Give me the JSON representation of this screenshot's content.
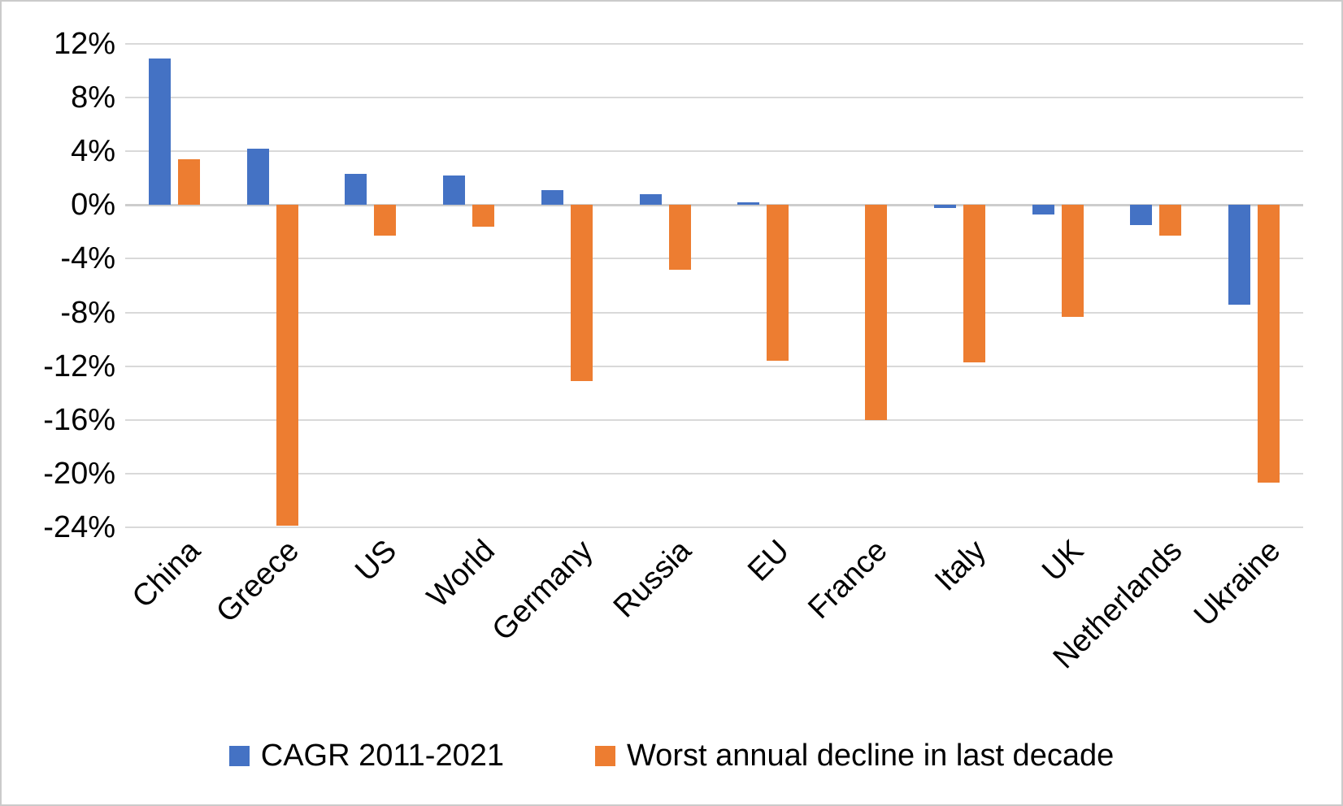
{
  "chart_data": {
    "type": "bar",
    "title": "",
    "categories": [
      "China",
      "Greece",
      "US",
      "World",
      "Germany",
      "Russia",
      "EU",
      "France",
      "Italy",
      "UK",
      "Netherlands",
      "Ukraine"
    ],
    "series": [
      {
        "name": "CAGR 2011-2021",
        "color": "#4472C4",
        "values": [
          10.9,
          4.2,
          2.3,
          2.2,
          1.1,
          0.8,
          0.2,
          0.0,
          -0.2,
          -0.7,
          -1.5,
          -7.4
        ]
      },
      {
        "name": "Worst annual decline in last decade",
        "color": "#ED7D31",
        "values": [
          3.4,
          -23.9,
          -2.3,
          -1.6,
          -13.1,
          -4.8,
          -11.6,
          -16.0,
          -11.7,
          -8.3,
          -2.3,
          -20.7
        ]
      }
    ],
    "y_axis": {
      "unit": "%",
      "max": 12,
      "min": -24,
      "tick_step": 4,
      "ticks": [
        "12%",
        "8%",
        "4%",
        "0%",
        "-4%",
        "-8%",
        "-12%",
        "-16%",
        "-20%",
        "-24%"
      ],
      "tick_values": [
        12,
        8,
        4,
        0,
        -4,
        -8,
        -12,
        -16,
        -20,
        -24
      ]
    },
    "grid": true,
    "legend_position": "bottom",
    "colors": {
      "background": "#FFFFFF",
      "gridline": "#D9D9D9",
      "zero_line": "#CDCDCD",
      "border": "#CBCBCB",
      "text": "#000000"
    }
  }
}
